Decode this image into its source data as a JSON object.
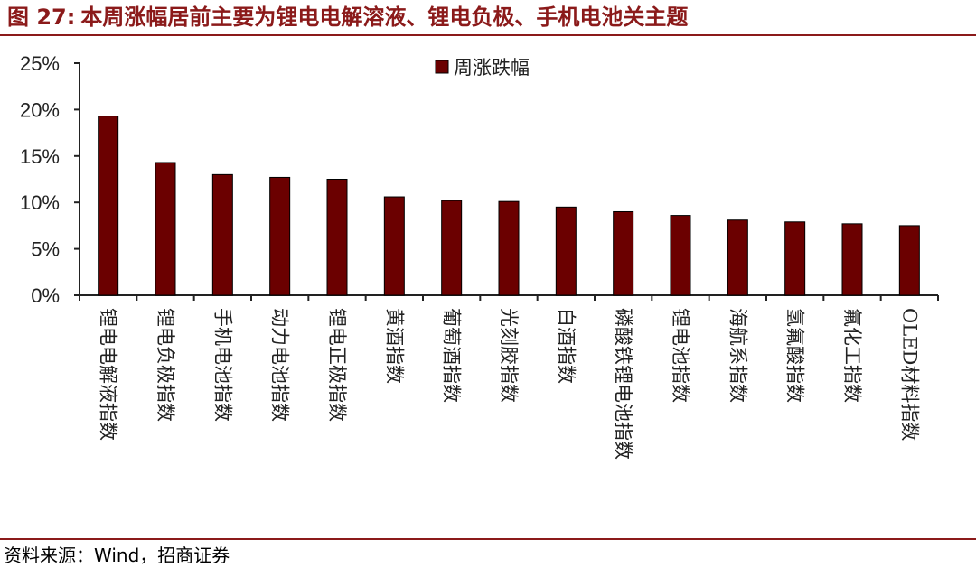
{
  "header": {
    "figure_label": "图 27:",
    "title": "本周涨幅居前主要为锂电电解溶液、锂电负极、手机电池关主题"
  },
  "footer": {
    "source": "资料来源：Wind，招商证券"
  },
  "colors": {
    "accent": "#8b1a1a",
    "bar": "#6b0000"
  },
  "chart_data": {
    "type": "bar",
    "categories": [
      "锂电电解液指数",
      "锂电负极指数",
      "手机电池指数",
      "动力电池指数",
      "锂电正极指数",
      "黄酒指数",
      "葡萄酒指数",
      "光刻胶指数",
      "白酒指数",
      "磷酸铁锂电池指数",
      "锂电池指数",
      "海航系指数",
      "氢氟酸指数",
      "氟化工指数",
      "OLED材料指数"
    ],
    "series": [
      {
        "name": "周涨跌幅",
        "values": [
          19.3,
          14.3,
          13.0,
          12.7,
          12.5,
          10.6,
          10.2,
          10.1,
          9.5,
          9.0,
          8.6,
          8.1,
          7.9,
          7.7,
          7.5
        ]
      }
    ],
    "ylim": [
      0,
      25
    ],
    "yticks": [
      "0%",
      "5%",
      "10%",
      "15%",
      "20%",
      "25%"
    ],
    "xlabel": "",
    "ylabel": "",
    "legend": "top-center",
    "grid": false
  }
}
